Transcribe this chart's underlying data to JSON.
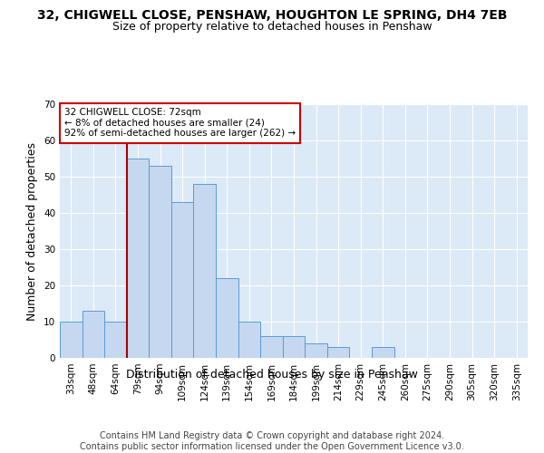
{
  "title": "32, CHIGWELL CLOSE, PENSHAW, HOUGHTON LE SPRING, DH4 7EB",
  "subtitle": "Size of property relative to detached houses in Penshaw",
  "xlabel": "Distribution of detached houses by size in Penshaw",
  "ylabel": "Number of detached properties",
  "categories": [
    "33sqm",
    "48sqm",
    "64sqm",
    "79sqm",
    "94sqm",
    "109sqm",
    "124sqm",
    "139sqm",
    "154sqm",
    "169sqm",
    "184sqm",
    "199sqm",
    "214sqm",
    "229sqm",
    "245sqm",
    "260sqm",
    "275sqm",
    "290sqm",
    "305sqm",
    "320sqm",
    "335sqm"
  ],
  "values": [
    10,
    13,
    10,
    55,
    53,
    43,
    48,
    22,
    10,
    6,
    6,
    4,
    3,
    0,
    3,
    0,
    0,
    0,
    0,
    0,
    0
  ],
  "bar_color": "#c5d8f0",
  "bar_edge_color": "#5b9bd5",
  "ylim": [
    0,
    70
  ],
  "yticks": [
    0,
    10,
    20,
    30,
    40,
    50,
    60,
    70
  ],
  "red_line_x": 2.5,
  "annotation_line1": "32 CHIGWELL CLOSE: 72sqm",
  "annotation_line2": "← 8% of detached houses are smaller (24)",
  "annotation_line3": "92% of semi-detached houses are larger (262) →",
  "annotation_box_color": "#ffffff",
  "annotation_box_edge": "#cc0000",
  "footer1": "Contains HM Land Registry data © Crown copyright and database right 2024.",
  "footer2": "Contains public sector information licensed under the Open Government Licence v3.0.",
  "background_color": "#dce9f7",
  "grid_color": "#ffffff",
  "title_fontsize": 10,
  "subtitle_fontsize": 9,
  "axis_label_fontsize": 9,
  "tick_fontsize": 7.5,
  "footer_fontsize": 7
}
